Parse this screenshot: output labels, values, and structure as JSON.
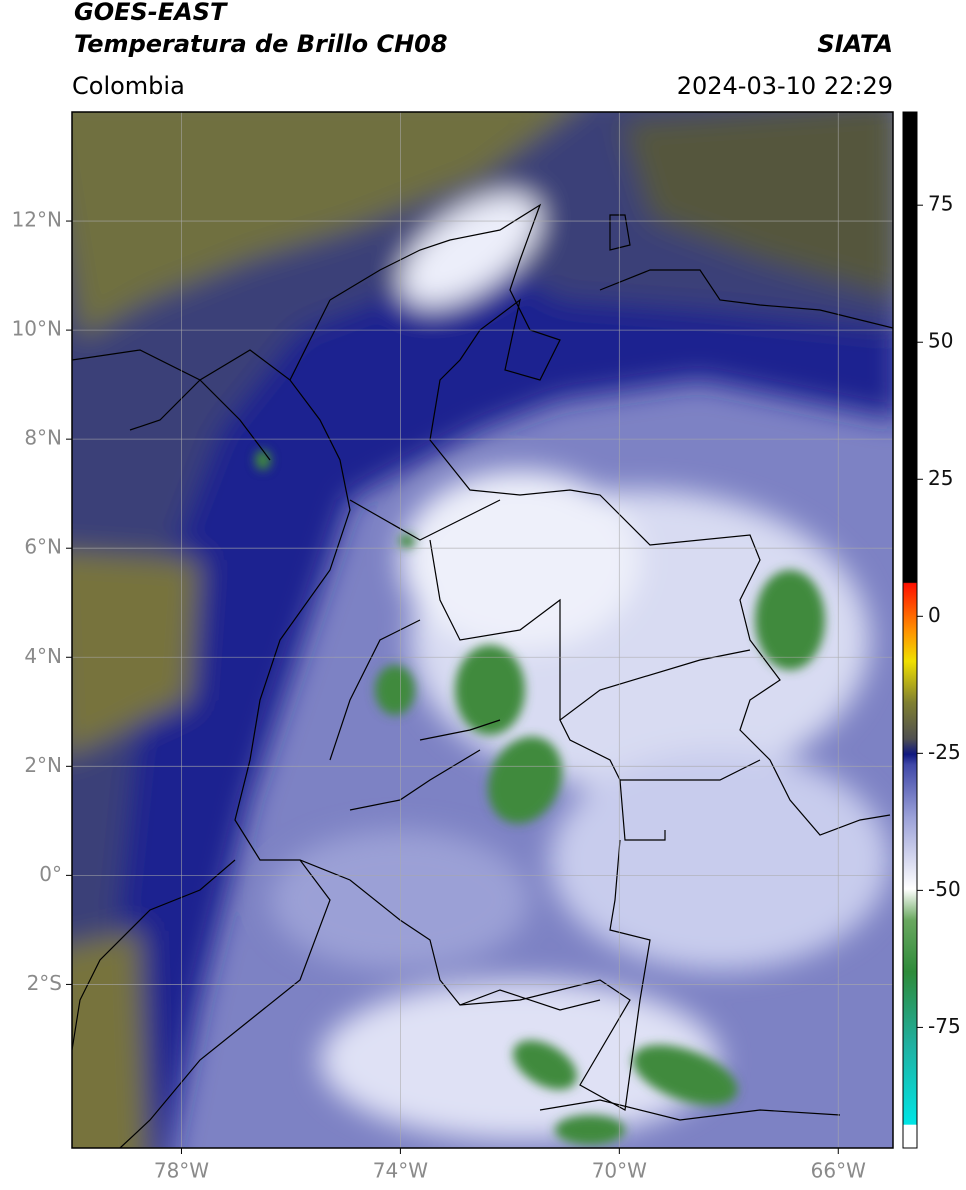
{
  "header": {
    "title": "GOES-EAST",
    "subtitle": "Temperatura de Brillo CH08",
    "source": "SIATA",
    "region": "Colombia",
    "timestamp": "2024-03-10 22:29"
  },
  "map": {
    "xlim": [
      -80,
      -65
    ],
    "ylim": [
      -5,
      14
    ],
    "xticks": [
      {
        "value": -78,
        "label": "78°W"
      },
      {
        "value": -74,
        "label": "74°W"
      },
      {
        "value": -70,
        "label": "70°W"
      },
      {
        "value": -66,
        "label": "66°W"
      }
    ],
    "yticks": [
      {
        "value": 12,
        "label": "12°N"
      },
      {
        "value": 10,
        "label": "10°N"
      },
      {
        "value": 8,
        "label": "8°N"
      },
      {
        "value": 6,
        "label": "6°N"
      },
      {
        "value": 4,
        "label": "4°N"
      },
      {
        "value": 2,
        "label": "2°N"
      },
      {
        "value": 0,
        "label": "0°"
      },
      {
        "value": -2,
        "label": "2°S"
      }
    ],
    "grid": true
  },
  "colorbar": {
    "lim": [
      -97,
      92
    ],
    "ticks": [
      75,
      50,
      25,
      0,
      -25,
      -50,
      -75
    ]
  }
}
